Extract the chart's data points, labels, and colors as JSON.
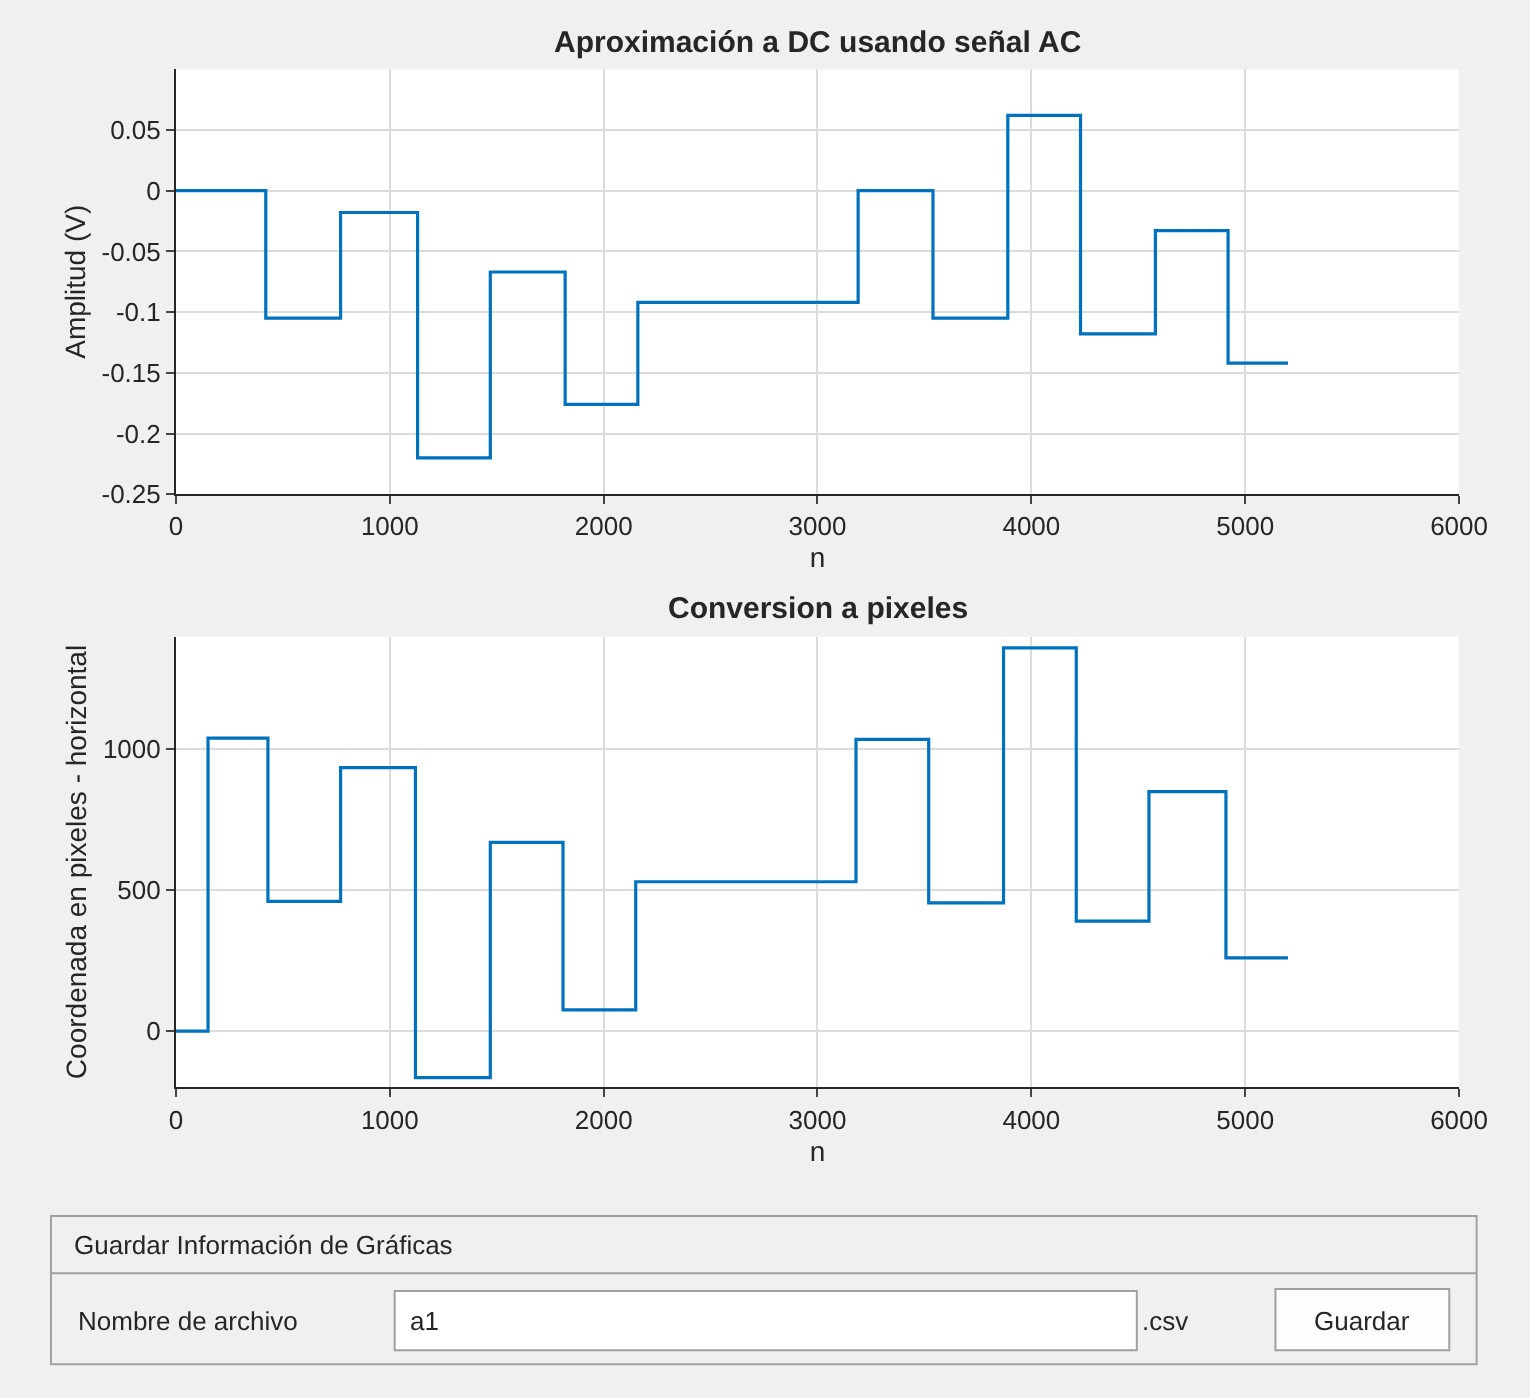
{
  "chart_data": [
    {
      "type": "step",
      "title": "Aproximación a DC usando señal AC",
      "xlabel": "n",
      "ylabel": "Amplitud (V)",
      "series": [
        {
          "color": "#0072bd",
          "x": [
            0,
            420,
            770,
            1130,
            1470,
            1820,
            2160,
            3190,
            3540,
            3890,
            4230,
            4580,
            4920,
            5200
          ],
          "values": [
            0,
            -0.105,
            -0.018,
            -0.22,
            -0.067,
            -0.176,
            -0.092,
            0,
            -0.105,
            0.062,
            -0.118,
            -0.033,
            -0.142,
            -0.142
          ]
        }
      ],
      "xlim": [
        0,
        6000
      ],
      "xticks": [
        0,
        1000,
        2000,
        3000,
        4000,
        5000,
        6000
      ],
      "ylim": [
        -0.25,
        0.1
      ],
      "yticks": [
        -0.25,
        -0.2,
        -0.15,
        -0.1,
        -0.05,
        0,
        0.05
      ],
      "grid": true
    },
    {
      "type": "step",
      "title": "Conversion a pixeles",
      "xlabel": "n",
      "ylabel": "Coordenada en pixeles - horizontal",
      "series": [
        {
          "color": "#0072bd",
          "x": [
            0,
            150,
            430,
            770,
            1120,
            1470,
            1810,
            2150,
            3180,
            3520,
            3870,
            4210,
            4550,
            4910,
            5200
          ],
          "values": [
            0,
            1040,
            460,
            935,
            -165,
            670,
            75,
            530,
            1035,
            455,
            1360,
            390,
            850,
            260,
            260
          ]
        }
      ],
      "xlim": [
        0,
        6000
      ],
      "xticks": [
        0,
        1000,
        2000,
        3000,
        4000,
        5000,
        6000
      ],
      "ylim": [
        -200,
        1400
      ],
      "yticks": [
        0,
        500,
        1000
      ],
      "grid": true
    },
    {
      "type": "other",
      "title": "Guardar Información de Gráficas",
      "annotations": [
        "Nombre de archivo",
        "a1",
        ".csv",
        "Guardar"
      ]
    }
  ]
}
